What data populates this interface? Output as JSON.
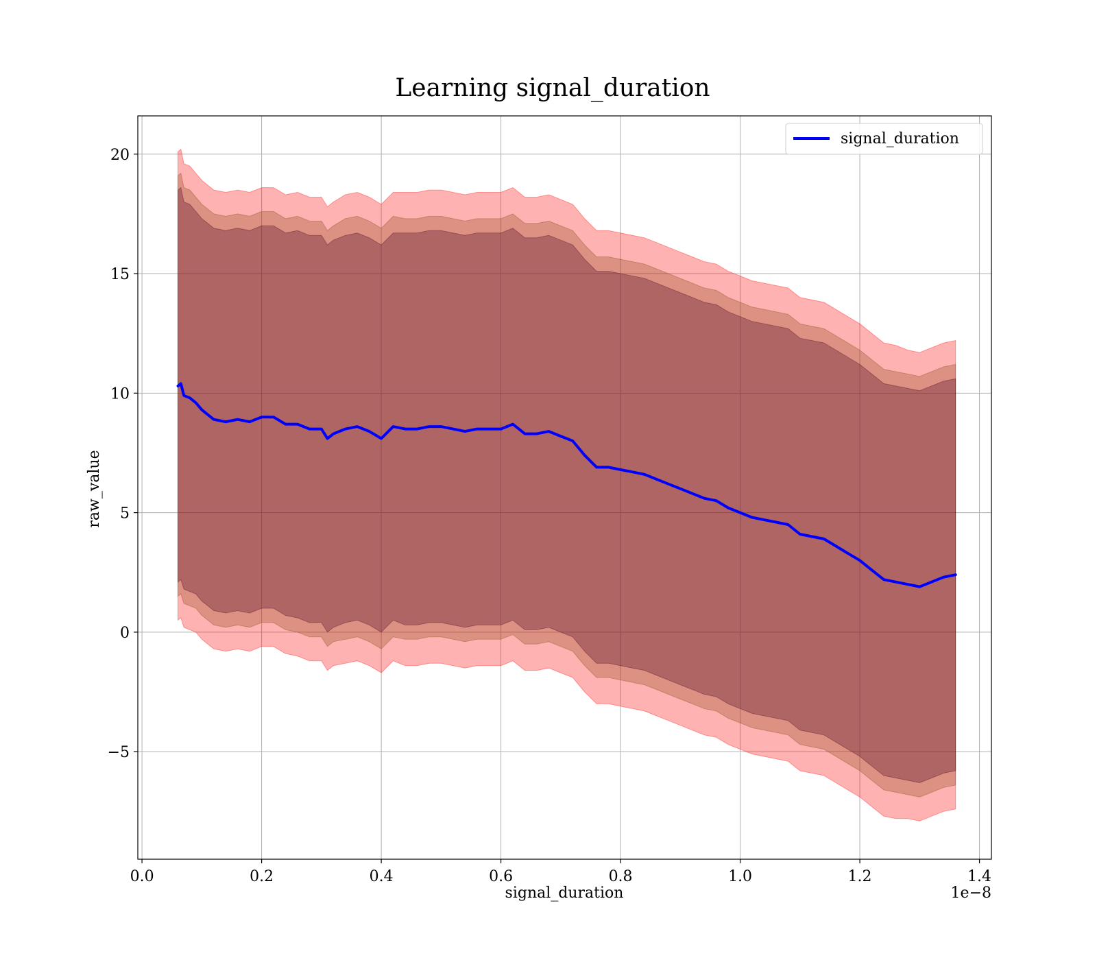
{
  "chart_data": {
    "type": "line",
    "title": "Learning signal_duration",
    "xlabel": "signal_duration",
    "ylabel": "raw_value",
    "x_offset_text": "1e−8",
    "xlim": [
      -0.007,
      1.42
    ],
    "ylim": [
      -9.5,
      21.6
    ],
    "grid": true,
    "legend": {
      "placement": "top-right",
      "entries": [
        "signal_duration"
      ]
    },
    "x_ticks": [
      0.0,
      0.2,
      0.4,
      0.6,
      0.8,
      1.0,
      1.2,
      1.4
    ],
    "x_tick_labels": [
      "0.0",
      "0.2",
      "0.4",
      "0.6",
      "0.8",
      "1.0",
      "1.2",
      "1.4"
    ],
    "y_ticks": [
      -5,
      0,
      5,
      10,
      15,
      20
    ],
    "y_tick_labels": [
      "−5",
      "0",
      "5",
      "10",
      "15",
      "20"
    ],
    "colors": {
      "line": "#0000ff",
      "band_outer": "#ff0000",
      "band_mid": "#8b4513",
      "band_inner": "#4b0026"
    },
    "series": [
      {
        "name": "signal_duration",
        "x": [
          0.06,
          0.065,
          0.07,
          0.08,
          0.09,
          0.1,
          0.11,
          0.12,
          0.14,
          0.16,
          0.18,
          0.2,
          0.22,
          0.24,
          0.26,
          0.28,
          0.3,
          0.31,
          0.32,
          0.34,
          0.36,
          0.38,
          0.4,
          0.42,
          0.44,
          0.46,
          0.48,
          0.5,
          0.52,
          0.54,
          0.56,
          0.58,
          0.6,
          0.62,
          0.64,
          0.66,
          0.68,
          0.7,
          0.72,
          0.74,
          0.76,
          0.78,
          0.8,
          0.82,
          0.84,
          0.86,
          0.88,
          0.9,
          0.92,
          0.94,
          0.96,
          0.98,
          1.0,
          1.02,
          1.04,
          1.06,
          1.08,
          1.1,
          1.12,
          1.14,
          1.16,
          1.18,
          1.2,
          1.22,
          1.24,
          1.26,
          1.28,
          1.3,
          1.32,
          1.34,
          1.36
        ],
        "y": [
          10.3,
          10.4,
          9.9,
          9.8,
          9.6,
          9.3,
          9.1,
          8.9,
          8.8,
          8.9,
          8.8,
          9.0,
          9.0,
          8.7,
          8.7,
          8.5,
          8.5,
          8.1,
          8.3,
          8.5,
          8.6,
          8.4,
          8.1,
          8.6,
          8.5,
          8.5,
          8.6,
          8.6,
          8.5,
          8.4,
          8.5,
          8.5,
          8.5,
          8.7,
          8.3,
          8.3,
          8.4,
          8.2,
          8.0,
          7.4,
          6.9,
          6.9,
          6.8,
          6.7,
          6.6,
          6.4,
          6.2,
          6.0,
          5.8,
          5.6,
          5.5,
          5.2,
          5.0,
          4.8,
          4.7,
          4.6,
          4.5,
          4.1,
          4.0,
          3.9,
          3.6,
          3.3,
          3.0,
          2.6,
          2.2,
          2.1,
          2.0,
          1.9,
          2.1,
          2.3,
          2.4
        ]
      }
    ],
    "bands": [
      {
        "name": "outer",
        "half_width": [
          9.8,
          9.8,
          9.7,
          9.7,
          9.6,
          9.6,
          9.6,
          9.6,
          9.6,
          9.6,
          9.6,
          9.6,
          9.6,
          9.6,
          9.7,
          9.7,
          9.7,
          9.7,
          9.7,
          9.8,
          9.8,
          9.8,
          9.8,
          9.8,
          9.9,
          9.9,
          9.9,
          9.9,
          9.9,
          9.9,
          9.9,
          9.9,
          9.9,
          9.9,
          9.9,
          9.9,
          9.9,
          9.9,
          9.9,
          9.9,
          9.9,
          9.9,
          9.9,
          9.9,
          9.9,
          9.9,
          9.9,
          9.9,
          9.9,
          9.9,
          9.9,
          9.9,
          9.9,
          9.9,
          9.9,
          9.9,
          9.9,
          9.9,
          9.9,
          9.9,
          9.9,
          9.9,
          9.9,
          9.9,
          9.9,
          9.9,
          9.8,
          9.8,
          9.8,
          9.8,
          9.8
        ]
      },
      {
        "name": "mid",
        "half_width": [
          8.8,
          8.8,
          8.7,
          8.7,
          8.6,
          8.6,
          8.6,
          8.6,
          8.6,
          8.6,
          8.6,
          8.6,
          8.6,
          8.6,
          8.7,
          8.7,
          8.7,
          8.7,
          8.7,
          8.8,
          8.8,
          8.8,
          8.8,
          8.8,
          8.8,
          8.8,
          8.8,
          8.8,
          8.8,
          8.8,
          8.8,
          8.8,
          8.8,
          8.8,
          8.8,
          8.8,
          8.8,
          8.8,
          8.8,
          8.8,
          8.8,
          8.8,
          8.8,
          8.8,
          8.8,
          8.8,
          8.8,
          8.8,
          8.8,
          8.8,
          8.8,
          8.8,
          8.8,
          8.8,
          8.8,
          8.8,
          8.8,
          8.8,
          8.8,
          8.8,
          8.8,
          8.8,
          8.8,
          8.8,
          8.8,
          8.8,
          8.8,
          8.8,
          8.8,
          8.8,
          8.8
        ]
      },
      {
        "name": "inner",
        "half_width": [
          8.2,
          8.2,
          8.1,
          8.1,
          8.0,
          8.0,
          8.0,
          8.0,
          8.0,
          8.0,
          8.0,
          8.0,
          8.0,
          8.0,
          8.1,
          8.1,
          8.1,
          8.1,
          8.1,
          8.1,
          8.1,
          8.1,
          8.1,
          8.1,
          8.2,
          8.2,
          8.2,
          8.2,
          8.2,
          8.2,
          8.2,
          8.2,
          8.2,
          8.2,
          8.2,
          8.2,
          8.2,
          8.2,
          8.2,
          8.2,
          8.2,
          8.2,
          8.2,
          8.2,
          8.2,
          8.2,
          8.2,
          8.2,
          8.2,
          8.2,
          8.2,
          8.2,
          8.2,
          8.2,
          8.2,
          8.2,
          8.2,
          8.2,
          8.2,
          8.2,
          8.2,
          8.2,
          8.2,
          8.2,
          8.2,
          8.2,
          8.2,
          8.2,
          8.2,
          8.2,
          8.2
        ]
      }
    ]
  }
}
